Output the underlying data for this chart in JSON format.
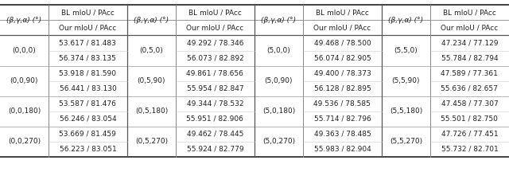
{
  "col_groups": [
    {
      "header": "(β,γ,α) (°)",
      "subheaders": [
        "BL mIoU / PAcc",
        "Our mIoU / PAcc"
      ],
      "rows": [
        {
          "label": "(0,0,0)",
          "bl": "53.617 / 81.483",
          "our": "56.374 / 83.135"
        },
        {
          "label": "(0,0,90)",
          "bl": "53.918 / 81.590",
          "our": "56.441 / 83.130"
        },
        {
          "label": "(0,0,180)",
          "bl": "53.587 / 81.476",
          "our": "56.246 / 83.054"
        },
        {
          "label": "(0,0,270)",
          "bl": "53.669 / 81.459",
          "our": "56.223 / 83.051"
        }
      ]
    },
    {
      "header": "(β,γ,α) (°)",
      "subheaders": [
        "BL mIoU / PAcc",
        "Our mIoU / PAcc"
      ],
      "rows": [
        {
          "label": "(0,5,0)",
          "bl": "49.292 / 78.346",
          "our": "56.073 / 82.892"
        },
        {
          "label": "(0,5,90)",
          "bl": "49.861 / 78.656",
          "our": "55.954 / 82.847"
        },
        {
          "label": "(0,5,180)",
          "bl": "49.344 / 78.532",
          "our": "55.951 / 82.906"
        },
        {
          "label": "(0,5,270)",
          "bl": "49.462 / 78.445",
          "our": "55.924 / 82.779"
        }
      ]
    },
    {
      "header": "(β,γ,α) (°)",
      "subheaders": [
        "BL mIoU / PAcc",
        "Our mIoU / PAcc"
      ],
      "rows": [
        {
          "label": "(5,0,0)",
          "bl": "49.468 / 78.500",
          "our": "56.074 / 82.905"
        },
        {
          "label": "(5,0,90)",
          "bl": "49.400 / 78.373",
          "our": "56.128 / 82.895"
        },
        {
          "label": "(5,0,180)",
          "bl": "49.536 / 78.585",
          "our": "55.714 / 82.796"
        },
        {
          "label": "(5,0,270)",
          "bl": "49.363 / 78.485",
          "our": "55.983 / 82.904"
        }
      ]
    },
    {
      "header": "(β,γ,α) (°)",
      "subheaders": [
        "BL mIoU / PAcc",
        "Our mIoU / PAcc"
      ],
      "rows": [
        {
          "label": "(5,5,0)",
          "bl": "47.234 / 77.129",
          "our": "55.784 / 82.794"
        },
        {
          "label": "(5,5,90)",
          "bl": "47.589 / 77.361",
          "our": "55.636 / 82.657"
        },
        {
          "label": "(5,5,180)",
          "bl": "47.458 / 77.307",
          "our": "55.501 / 82.750"
        },
        {
          "label": "(5,5,270)",
          "bl": "47.726 / 77.451",
          "our": "55.732 / 82.701"
        }
      ]
    }
  ],
  "line_color": "#888888",
  "text_color": "#222222",
  "font_size": 6.5,
  "header_font_size": 6.5
}
